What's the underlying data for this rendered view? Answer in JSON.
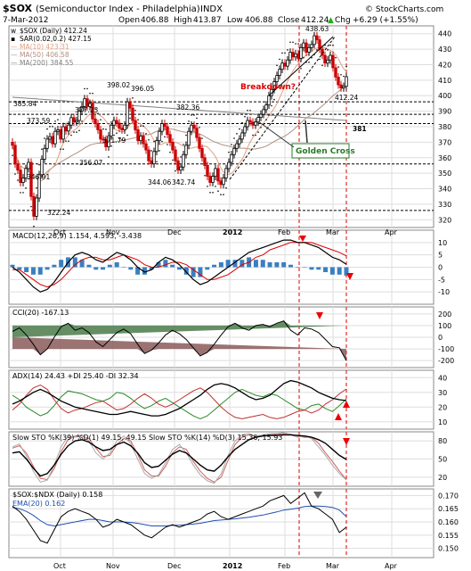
{
  "header": {
    "symbol": "$SOX",
    "name": "(Semiconductor Index - Philadelphia)",
    "exchange": "INDX",
    "brand": "© StockCharts.com",
    "date": "7-Mar-2012",
    "quote": {
      "open_label": "Open",
      "open": "406.88",
      "high_label": "High",
      "high": "413.87",
      "low_label": "Low",
      "low": "406.88",
      "close_label": "Close",
      "close": "412.24",
      "chg_label": "Chg",
      "chg": "+6.29 (+1.55%)",
      "chg_arrow": "▲"
    }
  },
  "colors": {
    "up": "#000000",
    "down": "#cc0000",
    "ma10": "#e0a080",
    "ma50": "#b09080",
    "ma200": "#808080",
    "sar": "#000000",
    "green": "#228822",
    "red": "#dd0000",
    "blue": "#1f5fb0",
    "grid": "#dddddd",
    "dashed": "#000000",
    "vline": "#dd0000"
  },
  "x_axis": {
    "labels": [
      {
        "text": "Oct",
        "bold": false
      },
      {
        "text": "Nov",
        "bold": false
      },
      {
        "text": "Dec",
        "bold": false
      },
      {
        "text": "2012",
        "bold": true
      },
      {
        "text": "Feb",
        "bold": false
      },
      {
        "text": "Mar",
        "bold": false
      },
      {
        "text": "Apr",
        "bold": false
      }
    ]
  },
  "chart_data": [
    {
      "type": "candlestick",
      "id": "price",
      "ylim": [
        315,
        445
      ],
      "yticks": [
        320,
        330,
        340,
        350,
        360,
        370,
        380,
        390,
        400,
        410,
        420,
        430,
        440
      ],
      "legend": [
        {
          "marker": "w",
          "text": "$SOX (Daily) 412.24",
          "color": "#000000"
        },
        {
          "marker": "▪",
          "text": "SAR(0.02,0.2) 427.15",
          "color": "#000000"
        },
        {
          "marker": "—",
          "text": "MA(10) 423.31",
          "color": "#e0a080"
        },
        {
          "marker": "—",
          "text": "MA(50) 406.58",
          "color": "#b09080"
        },
        {
          "marker": "—",
          "text": "MA(200) 384.55",
          "color": "#808080"
        }
      ],
      "horizontal_lines": [
        396,
        388,
        382,
        356,
        326
      ],
      "price_labels": [
        "438.63",
        "398.02",
        "396.05",
        "385.84",
        "377.23",
        "382.36",
        "373.59",
        "371.79",
        "356.07",
        "346.91",
        "344.06",
        "342.74",
        "322.24",
        "381",
        "412.24"
      ],
      "annotations": [
        "Breakdown?",
        "Golden Cross"
      ],
      "closes": [
        368,
        356,
        352,
        344,
        346.91,
        353,
        357,
        335,
        322.24,
        334,
        349,
        359,
        366,
        372,
        373.59,
        369,
        377,
        378,
        372,
        380,
        377.23,
        381,
        385.84,
        383,
        384,
        390,
        393,
        398.02,
        393,
        395,
        385,
        382,
        378,
        372,
        371.79,
        367,
        374,
        381,
        384,
        382.36,
        379,
        378,
        381,
        396.05,
        392,
        384,
        378,
        371,
        374,
        369,
        365,
        358,
        356.07,
        364,
        371,
        377,
        382,
        380,
        375,
        370,
        365,
        358,
        352,
        354,
        362,
        368,
        377,
        381,
        379,
        373,
        366,
        360,
        355,
        348,
        344.06,
        348,
        353,
        345,
        342.74,
        347,
        353,
        357,
        362,
        366,
        369,
        372,
        376,
        380,
        384,
        383,
        381,
        383,
        386,
        388,
        391,
        394,
        400,
        404,
        409,
        413,
        417,
        421,
        419,
        423,
        428,
        425,
        427,
        424,
        431,
        434,
        428,
        431,
        433,
        438.63,
        436,
        430,
        426,
        421,
        423,
        426,
        418,
        412,
        407,
        405,
        406,
        412.24
      ]
    },
    {
      "type": "line",
      "id": "macd",
      "ylim": [
        -15,
        15
      ],
      "yticks": [
        -10,
        -5,
        0,
        5,
        10
      ],
      "title": "MACD(12,26,9) 1.154, 4.593, -3.438",
      "series": [
        {
          "name": "MACD",
          "color": "#000000"
        },
        {
          "name": "Signal",
          "color": "#cc0000"
        },
        {
          "name": "Histogram",
          "color": "#3377bb"
        }
      ],
      "macd": [
        0,
        -2,
        -5,
        -8,
        -10,
        -9,
        -6,
        -2,
        2,
        5,
        6,
        5,
        3,
        2,
        4,
        6,
        5,
        3,
        0,
        -2,
        -1,
        2,
        4,
        3,
        1,
        -2,
        -5,
        -7,
        -6,
        -4,
        -2,
        0,
        2,
        4,
        6,
        7,
        8,
        9,
        10,
        11,
        11,
        10,
        10,
        9,
        8,
        6,
        4,
        3,
        1.2
      ],
      "signal": [
        -1,
        -1,
        -3,
        -5,
        -7,
        -8,
        -7,
        -5,
        -2,
        1,
        3,
        4,
        4,
        3,
        3,
        4,
        5,
        4,
        3,
        1,
        0,
        0,
        1,
        2,
        2,
        1,
        -1,
        -3,
        -5,
        -5,
        -4,
        -3,
        -1,
        1,
        2,
        4,
        5,
        7,
        8,
        9,
        10,
        10,
        10,
        10,
        9,
        8,
        7,
        6,
        4.6
      ]
    },
    {
      "type": "line",
      "id": "cci",
      "ylim": [
        -260,
        260
      ],
      "yticks": [
        -200,
        -100,
        0,
        100,
        200
      ],
      "title": "CCI(20) -167.13",
      "values": [
        50,
        80,
        20,
        -60,
        -150,
        -100,
        0,
        90,
        120,
        60,
        80,
        40,
        -40,
        -80,
        -20,
        40,
        70,
        30,
        -60,
        -140,
        -110,
        -50,
        20,
        60,
        30,
        -20,
        -90,
        -160,
        -130,
        -60,
        20,
        90,
        120,
        80,
        60,
        100,
        110,
        90,
        120,
        140,
        60,
        20,
        80,
        70,
        40,
        -20,
        -80,
        -90,
        -200
      ]
    },
    {
      "type": "line",
      "id": "adx",
      "ylim": [
        5,
        45
      ],
      "yticks": [
        10,
        20,
        30,
        40
      ],
      "title": "ADX(14) 24.43  +DI 25.40  -DI 32.34",
      "adx": [
        22,
        24,
        27,
        30,
        32,
        30,
        27,
        24,
        22,
        20,
        19,
        18,
        17,
        16,
        15,
        15,
        16,
        17,
        16,
        15,
        14,
        14,
        15,
        17,
        19,
        22,
        25,
        28,
        32,
        35,
        36,
        35,
        33,
        30,
        27,
        25,
        26,
        28,
        32,
        36,
        38,
        37,
        35,
        33,
        30,
        28,
        26,
        25,
        24.4
      ],
      "plus_di": [
        28,
        25,
        20,
        17,
        14,
        16,
        21,
        27,
        31,
        30,
        29,
        27,
        25,
        24,
        26,
        30,
        29,
        26,
        22,
        19,
        21,
        24,
        26,
        23,
        20,
        17,
        14,
        12,
        14,
        18,
        22,
        26,
        30,
        32,
        30,
        28,
        27,
        29,
        28,
        25,
        22,
        19,
        18,
        21,
        22,
        19,
        17,
        21,
        25.4
      ],
      "minus_di": [
        18,
        22,
        28,
        33,
        35,
        32,
        25,
        19,
        16,
        18,
        19,
        21,
        23,
        24,
        21,
        18,
        19,
        22,
        26,
        29,
        26,
        22,
        20,
        22,
        25,
        28,
        31,
        33,
        30,
        25,
        20,
        16,
        13,
        12,
        13,
        14,
        15,
        13,
        12,
        13,
        15,
        17,
        18,
        16,
        18,
        22,
        25,
        29,
        32.3
      ]
    },
    {
      "type": "line",
      "id": "stoch",
      "ylim": [
        5,
        95
      ],
      "yticks": [
        20,
        50,
        80
      ],
      "title": "Slow STO %K(39) %D(1) 49.15, 49.15  Slow STO %K(14) %D(3) 15.36, 15.93",
      "k39": [
        60,
        62,
        50,
        35,
        22,
        26,
        40,
        58,
        72,
        80,
        82,
        78,
        70,
        64,
        66,
        74,
        78,
        72,
        60,
        44,
        36,
        38,
        48,
        58,
        64,
        60,
        50,
        40,
        32,
        30,
        40,
        54,
        66,
        74,
        82,
        86,
        88,
        89,
        89,
        90,
        90,
        89,
        88,
        86,
        82,
        76,
        66,
        56,
        49.2
      ],
      "k14": [
        70,
        75,
        55,
        30,
        12,
        15,
        40,
        70,
        88,
        86,
        90,
        80,
        60,
        50,
        60,
        80,
        88,
        76,
        50,
        26,
        18,
        24,
        44,
        66,
        74,
        60,
        40,
        24,
        14,
        10,
        26,
        56,
        80,
        90,
        92,
        88,
        90,
        92,
        92,
        94,
        90,
        86,
        88,
        84,
        70,
        56,
        40,
        26,
        15.4
      ],
      "d14": [
        68,
        72,
        60,
        38,
        18,
        16,
        34,
        62,
        82,
        88,
        88,
        84,
        68,
        54,
        56,
        74,
        84,
        80,
        58,
        32,
        22,
        22,
        38,
        60,
        70,
        66,
        46,
        30,
        18,
        12,
        20,
        48,
        74,
        86,
        90,
        88,
        88,
        90,
        91,
        92,
        91,
        88,
        86,
        86,
        76,
        60,
        46,
        30,
        15.9
      ]
    },
    {
      "type": "line",
      "id": "ratio",
      "ylim": [
        0.1465,
        0.1725
      ],
      "yticks": [
        0.15,
        0.155,
        0.16,
        0.165,
        0.17
      ],
      "yticklabels": [
        "0.150",
        "0.155",
        "0.160",
        "0.165",
        "0.170"
      ],
      "title": "$SOX:$NDX (Daily) 0.158",
      "legend2": "EMA(20) 0.162",
      "ratio": [
        0.166,
        0.164,
        0.161,
        0.157,
        0.153,
        0.152,
        0.157,
        0.162,
        0.164,
        0.165,
        0.164,
        0.163,
        0.161,
        0.158,
        0.159,
        0.161,
        0.16,
        0.159,
        0.157,
        0.155,
        0.154,
        0.156,
        0.158,
        0.159,
        0.158,
        0.159,
        0.16,
        0.161,
        0.163,
        0.164,
        0.162,
        0.161,
        0.162,
        0.163,
        0.164,
        0.165,
        0.166,
        0.168,
        0.169,
        0.17,
        0.167,
        0.169,
        0.171,
        0.166,
        0.165,
        0.163,
        0.161,
        0.156,
        0.158
      ],
      "ema": [
        0.1655,
        0.165,
        0.164,
        0.1625,
        0.1605,
        0.159,
        0.1585,
        0.159,
        0.1595,
        0.16,
        0.1605,
        0.161,
        0.161,
        0.1605,
        0.16,
        0.16,
        0.16,
        0.1598,
        0.1595,
        0.159,
        0.1585,
        0.1585,
        0.1585,
        0.1587,
        0.1588,
        0.159,
        0.1592,
        0.1595,
        0.16,
        0.1605,
        0.1607,
        0.161,
        0.1612,
        0.1615,
        0.1618,
        0.1622,
        0.1626,
        0.1632,
        0.1638,
        0.1645,
        0.1648,
        0.1652,
        0.1658,
        0.166,
        0.166,
        0.1658,
        0.1655,
        0.1645,
        0.162
      ]
    }
  ]
}
